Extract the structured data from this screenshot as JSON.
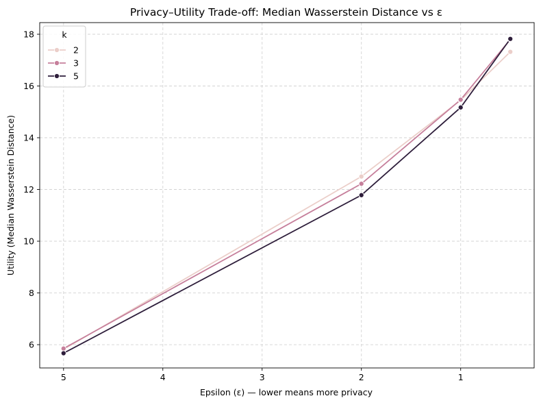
{
  "chart_data": {
    "type": "line",
    "title": "Privacy–Utility Trade-off: Median Wasserstein Distance vs ε",
    "xlabel": "Epsilon (ε) — lower means more privacy",
    "ylabel": "Utility (Median Wasserstein Distance)",
    "x_reversed": true,
    "xlim": [
      5.24,
      0.26
    ],
    "ylim": [
      5.1,
      18.45
    ],
    "x_ticks": [
      5,
      4,
      3,
      2,
      1
    ],
    "x_tick_labels": [
      "5",
      "4",
      "3",
      "2",
      "1"
    ],
    "y_ticks": [
      6,
      8,
      10,
      12,
      14,
      16,
      18
    ],
    "y_tick_labels": [
      "6",
      "8",
      "10",
      "12",
      "14",
      "16",
      "18"
    ],
    "grid": true,
    "legend": {
      "title": "k",
      "placement": "top-left"
    },
    "x": [
      5,
      2,
      1,
      0.5
    ],
    "series": [
      {
        "name": "2",
        "color": "#ebcec9",
        "values": [
          5.82,
          12.5,
          15.45,
          17.32
        ]
      },
      {
        "name": "3",
        "color": "#c67f9b",
        "values": [
          5.85,
          12.22,
          15.47,
          17.8
        ]
      },
      {
        "name": "5",
        "color": "#2e1e3b",
        "values": [
          5.67,
          11.78,
          15.17,
          17.82
        ]
      }
    ]
  }
}
